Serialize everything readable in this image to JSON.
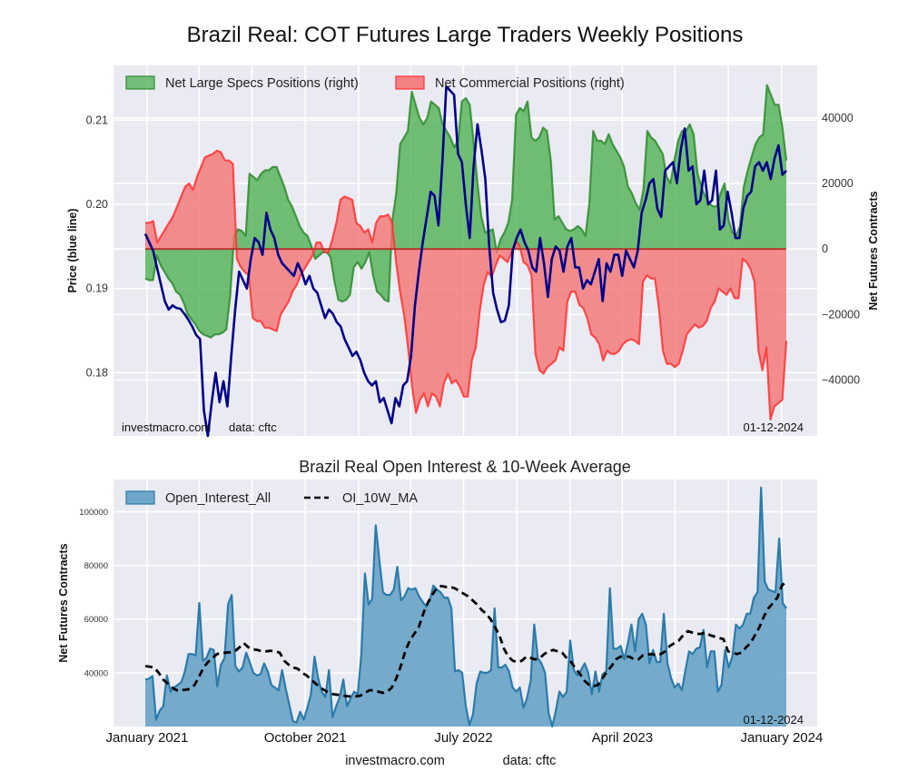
{
  "chart_data": [
    {
      "type": "area",
      "title": "Brazil Real: COT Futures Large Traders Weekly Positions",
      "xlabel": "",
      "ylabel_left": "Price (blue line)",
      "ylabel_right": "Net Futures Contracts",
      "ylim_left": [
        0.1725,
        0.2165
      ],
      "ylim_right": [
        -57000,
        56000
      ],
      "yticks_left": [
        "0.18",
        "0.19",
        "0.20",
        "0.21"
      ],
      "ytick_values_left": [
        0.18,
        0.19,
        0.2,
        0.21
      ],
      "yticks_right": [
        "−40000",
        "−20000",
        "0",
        "20000",
        "40000"
      ],
      "ytick_values_right": [
        -40000,
        -20000,
        0,
        20000,
        40000
      ],
      "grid": true,
      "legend_position": "top-left",
      "legend": [
        "Net Large Specs Positions (right)",
        "Net Commercial Positions (right)"
      ],
      "watermark_left": "investmacro.com",
      "watermark_data": "data: cftc",
      "date_stamp": "01-12-2024",
      "x_start": "2020-12-29",
      "x_end": "2024-01-09",
      "series": [
        {
          "name": "Net Large Specs Positions (right)",
          "axis": "right",
          "color": "#2e8b2e",
          "fill": "#4caf50",
          "values": [
            -9000,
            -9500,
            -9500,
            -2000,
            -5000,
            -7000,
            -9000,
            -10500,
            -13000,
            -14000,
            -16500,
            -20000,
            -21500,
            -23000,
            -25000,
            -26000,
            -26500,
            -27000,
            -26000,
            -26000,
            -25500,
            -24500,
            -14000,
            4000,
            6000,
            5500,
            4000,
            23000,
            22000,
            21000,
            23000,
            24000,
            24000,
            25000,
            25000,
            22000,
            19000,
            15000,
            13000,
            10000,
            7000,
            5000,
            4000,
            1000,
            -3000,
            -2000,
            -1000,
            -1000,
            -2500,
            -10000,
            -15500,
            -16000,
            -15500,
            -14000,
            -5500,
            -4000,
            -6000,
            -4000,
            -1000,
            -8000,
            -13000,
            -14000,
            -15500,
            -16000,
            9000,
            17000,
            32000,
            34000,
            36000,
            48000,
            44000,
            40000,
            38000,
            40000,
            45000,
            44000,
            43000,
            38000,
            36000,
            34000,
            31000,
            33000,
            45000,
            46000,
            44000,
            33000,
            20000,
            10000,
            5000,
            5500,
            6000,
            -1000,
            3000,
            5000,
            8000,
            15000,
            41000,
            43000,
            42000,
            45000,
            34000,
            33000,
            34000,
            37000,
            36000,
            27000,
            9000,
            10000,
            8000,
            6000,
            5500,
            6000,
            7000,
            6000,
            4000,
            14000,
            36000,
            33000,
            33000,
            32000,
            35000,
            32000,
            30000,
            28000,
            25000,
            19000,
            17000,
            14000,
            12000,
            18000,
            36000,
            34000,
            33000,
            31000,
            29000,
            22000,
            20000,
            27000,
            33000,
            36000,
            36000,
            38000,
            35000,
            23000,
            19000,
            16000,
            14000,
            13000,
            13000,
            17000,
            20000,
            9000,
            5000,
            4000,
            7000,
            19000,
            24000,
            28000,
            32000,
            34000,
            35000,
            50000,
            47000,
            44000,
            44000,
            37000,
            27000
          ]
        },
        {
          "name": "Net Commercial Positions (right)",
          "axis": "right",
          "color": "#ff3333",
          "fill": "#f47070",
          "values": [
            8000,
            8000,
            8500,
            2000,
            4000,
            6000,
            8000,
            10000,
            13000,
            16000,
            19000,
            20000,
            18000,
            22000,
            25000,
            28000,
            28500,
            29000,
            30000,
            29500,
            27000,
            27000,
            26000,
            -3000,
            -5500,
            -7000,
            -8000,
            -21000,
            -22000,
            -22000,
            -24000,
            -24000,
            -24500,
            -25000,
            -20000,
            -18000,
            -16000,
            -13000,
            -11000,
            -8000,
            -6000,
            -4000,
            -2000,
            2000,
            2000,
            -1000,
            -1000,
            3000,
            8000,
            15000,
            16000,
            15500,
            15000,
            8000,
            7000,
            5000,
            6000,
            2000,
            8000,
            10000,
            10000,
            10500,
            8000,
            -4000,
            -13000,
            -20000,
            -30000,
            -42000,
            -50000,
            -46000,
            -44000,
            -48000,
            -44000,
            -45000,
            -48000,
            -41000,
            -38000,
            -41000,
            -40000,
            -42000,
            -45000,
            -45000,
            -34000,
            -30000,
            -19000,
            -11000,
            -7000,
            -8500,
            -5000,
            -2000,
            -3000,
            -4000,
            -1000,
            2500,
            1000,
            -4000,
            -5000,
            -8000,
            -32000,
            -37000,
            -38000,
            -36000,
            -35000,
            -34000,
            -30000,
            -31000,
            -16000,
            -13000,
            -13000,
            -17000,
            -18000,
            -21000,
            -26000,
            -27000,
            -29000,
            -34000,
            -31000,
            -32000,
            -32000,
            -31000,
            -29000,
            -28000,
            -27500,
            -28000,
            -29000,
            -10000,
            -8000,
            -9000,
            -9000,
            -18000,
            -31000,
            -35000,
            -35000,
            -36000,
            -35000,
            -31000,
            -26000,
            -24500,
            -23000,
            -24000,
            -23500,
            -22000,
            -18000,
            -16000,
            -12000,
            -13000,
            -14000,
            -12000,
            -15000,
            -15000,
            -3000,
            -4000,
            -6000,
            -10000,
            -31000,
            -37000,
            -30000,
            -52000,
            -48000,
            -47000,
            -46000,
            -28000
          ]
        },
        {
          "name": "Price (blue line)",
          "axis": "left",
          "color": "#00008b",
          "values": [
            0.1965,
            0.1955,
            0.1945,
            0.1925,
            0.1905,
            0.1885,
            0.1875,
            0.188,
            0.1877,
            0.1876,
            0.187,
            0.1863,
            0.1855,
            0.1845,
            0.184,
            0.1755,
            0.1725,
            0.1765,
            0.18,
            0.1765,
            0.179,
            0.176,
            0.182,
            0.1875,
            0.192,
            0.191,
            0.19,
            0.1935,
            0.196,
            0.1955,
            0.194,
            0.199,
            0.197,
            0.196,
            0.194,
            0.193,
            0.1925,
            0.192,
            0.1915,
            0.193,
            0.192,
            0.1905,
            0.1915,
            0.19,
            0.1895,
            0.188,
            0.1865,
            0.1875,
            0.187,
            0.186,
            0.1855,
            0.184,
            0.183,
            0.182,
            0.1825,
            0.1815,
            0.18,
            0.179,
            0.1785,
            0.179,
            0.1765,
            0.177,
            0.1755,
            0.174,
            0.177,
            0.176,
            0.1785,
            0.179,
            0.182,
            0.188,
            0.192,
            0.1955,
            0.1985,
            0.2015,
            0.201,
            0.1975,
            0.205,
            0.214,
            0.2135,
            0.213,
            0.206,
            0.205,
            0.2,
            0.196,
            0.2045,
            0.2095,
            0.2065,
            0.203,
            0.195,
            0.1895,
            0.1875,
            0.186,
            0.1862,
            0.188,
            0.1945,
            0.196,
            0.197,
            0.1955,
            0.1945,
            0.1925,
            0.192,
            0.196,
            0.193,
            0.189,
            0.1935,
            0.195,
            0.1945,
            0.192,
            0.195,
            0.196,
            0.1925,
            0.1925,
            0.19,
            0.191,
            0.1905,
            0.192,
            0.1935,
            0.1885,
            0.193,
            0.192,
            0.194,
            0.194,
            0.1915,
            0.1945,
            0.1935,
            0.1925,
            0.1945,
            0.199,
            0.2005,
            0.2025,
            0.203,
            0.1995,
            0.1985,
            0.204,
            0.2045,
            0.205,
            0.2025,
            0.2065,
            0.209,
            0.204,
            0.2045,
            0.2,
            0.2005,
            0.204,
            0.2,
            0.2005,
            0.204,
            0.197,
            0.1975,
            0.2015,
            0.199,
            0.196,
            0.196,
            0.1995,
            0.201,
            0.2015,
            0.2045,
            0.205,
            0.204,
            0.205,
            0.203,
            0.2055,
            0.207,
            0.2035,
            0.204
          ]
        }
      ]
    },
    {
      "type": "area",
      "title": "Brazil Real Open Interest & 10-Week Average",
      "xlabel": "",
      "ylabel": "Net Futures Contracts",
      "ylim": [
        20000,
        112000
      ],
      "yticks": [
        "40000",
        "60000",
        "80000",
        "100000"
      ],
      "ytick_values": [
        40000,
        60000,
        80000,
        100000
      ],
      "xticks": [
        "January 2021",
        "October 2021",
        "July 2022",
        "April 2023",
        "January 2024"
      ],
      "xtick_dates": [
        "2021-01-01",
        "2021-10-01",
        "2022-07-01",
        "2023-04-01",
        "2024-01-01"
      ],
      "grid": true,
      "legend_position": "top-left",
      "legend": [
        "Open_Interest_All",
        "OI_10W_MA"
      ],
      "date_stamp": "01-12-2024",
      "series": [
        {
          "name": "Open_Interest_All",
          "color": "#2b7bab",
          "fill": "#6fa7c8",
          "values": [
            37500,
            37800,
            38800,
            22500,
            26000,
            27500,
            39000,
            33000,
            34500,
            35500,
            36500,
            40500,
            47000,
            47000,
            46500,
            66000,
            44500,
            45500,
            49000,
            48500,
            35000,
            43000,
            45500,
            65500,
            69000,
            42500,
            40500,
            42000,
            47500,
            44000,
            40000,
            39000,
            39500,
            43500,
            40500,
            35500,
            34500,
            33500,
            41000,
            34000,
            28000,
            22000,
            21500,
            25500,
            22500,
            27000,
            32000,
            46000,
            38000,
            33000,
            31000,
            41000,
            23500,
            27500,
            31000,
            37500,
            27500,
            30500,
            33000,
            32000,
            47000,
            77000,
            65500,
            67500,
            95000,
            82000,
            70000,
            69000,
            69000,
            71000,
            79500,
            67000,
            68500,
            71500,
            71000,
            71500,
            68500,
            66500,
            64500,
            67000,
            72500,
            71000,
            70000,
            68000,
            68000,
            64000,
            40500,
            41000,
            40000,
            27500,
            20500,
            24500,
            36000,
            40500,
            40000,
            40000,
            41000,
            64000,
            42000,
            42000,
            43000,
            40500,
            34500,
            33000,
            34500,
            27000,
            30500,
            37000,
            58000,
            45500,
            43500,
            40000,
            25000,
            20000,
            26000,
            33000,
            31000,
            33000,
            52000,
            41000,
            39000,
            41000,
            43500,
            40000,
            32000,
            40500,
            33000,
            39500,
            40500,
            71500,
            49000,
            49000,
            50000,
            45000,
            51000,
            58000,
            48000,
            60000,
            62000,
            58000,
            43500,
            48500,
            44000,
            44000,
            62000,
            43500,
            38000,
            34500,
            36000,
            33500,
            41000,
            48000,
            47000,
            49000,
            49500,
            56000,
            42000,
            48000,
            48000,
            33000,
            35500,
            48500,
            42000,
            46000,
            58000,
            56500,
            58000,
            62000,
            62000,
            68000,
            70000,
            109000,
            74000,
            71000,
            70500,
            70000,
            90000,
            66000,
            64000
          ]
        },
        {
          "name": "OI_10W_MA",
          "color": "#000000",
          "dashed": true,
          "values": [
            42500,
            42300,
            42000,
            40000,
            37500,
            36000,
            34500,
            33500,
            33500,
            33700,
            34000,
            35500,
            38500,
            42000,
            44000,
            45500,
            47000,
            47300,
            47500,
            47700,
            48000,
            49500,
            51000,
            49500,
            48800,
            48500,
            48000,
            48000,
            48200,
            48000,
            47500,
            44500,
            43000,
            42000,
            41500,
            40000,
            39000,
            37500,
            36000,
            34500,
            33500,
            32500,
            32000,
            31800,
            31500,
            31300,
            31200,
            31200,
            31500,
            32500,
            33500,
            33500,
            33000,
            32500,
            33000,
            34500,
            38000,
            42500,
            48000,
            52000,
            54500,
            57000,
            62000,
            66000,
            69000,
            71500,
            72300,
            72000,
            72000,
            71500,
            70500,
            69500,
            68500,
            67000,
            65500,
            63500,
            62000,
            60000,
            57000,
            54000,
            49000,
            46000,
            44500,
            44000,
            44500,
            46000,
            45500,
            45000,
            45500,
            47000,
            48000,
            48500,
            48000,
            47500,
            45500,
            44000,
            41500,
            39500,
            37000,
            35500,
            35000,
            35500,
            38000,
            40500,
            42500,
            45000,
            46000,
            46000,
            46000,
            45000,
            45000,
            46500,
            46800,
            47000,
            46500,
            47000,
            48000,
            50000,
            51000,
            52000,
            54000,
            55500,
            55000,
            54500,
            54500,
            55000,
            54000,
            53500,
            53000,
            52500,
            48000,
            47500,
            47000,
            47500,
            49500,
            51000,
            54000,
            57000,
            61000,
            64000,
            66000,
            68000,
            72500,
            74000
          ]
        }
      ]
    }
  ],
  "footer": {
    "site": "investmacro.com",
    "data": "data: cftc"
  },
  "colors": {
    "axes_bg": "#eaeaf2",
    "grid": "#ffffff",
    "price_line": "#00008b",
    "specs_line": "#2e8b2e",
    "specs_fill": "#4caf50",
    "comm_line": "#ff3333",
    "comm_fill": "#f47070",
    "oi_line": "#2b7bab",
    "oi_fill": "#6fa7c8",
    "ma_line": "#000000"
  }
}
